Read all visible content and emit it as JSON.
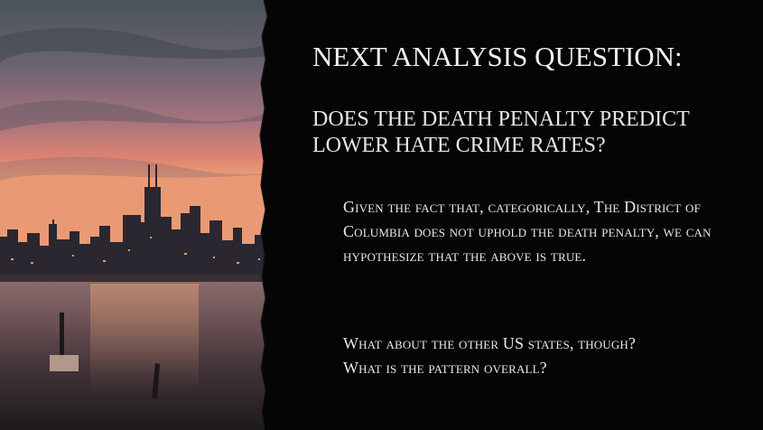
{
  "slide": {
    "heading": "NEXT ANALYSIS QUESTION:",
    "subheading_line1": "DOES THE DEATH PENALTY PREDICT",
    "subheading_line2": "LOWER HATE CRIME RATES?",
    "paragraph1": "Given the fact that, categorically, The District of Columbia does not uphold the death penalty, we can hypothesize that the above is true.",
    "paragraph2_line1": "What about the other US states, though?",
    "paragraph2_line2": "What is the pattern overall?"
  },
  "colors": {
    "panel_background": "#050505",
    "heading_text": "#f0f0f0",
    "body_text": "#e8e8e8",
    "sky_top": "#4d5660",
    "sky_horizon": "#e6836b",
    "water": "#3a2f35"
  }
}
